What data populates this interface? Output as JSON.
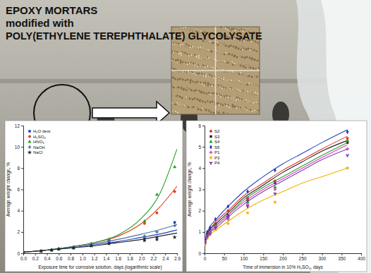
{
  "header": {
    "lines": [
      "EPOXY MORTARS",
      "modified with",
      "POLY(ETHYLENE TEREPHTHALATE) GLYCOLYSATE"
    ]
  },
  "chart_data": [
    {
      "type": "scatter",
      "x_label": "Exposure time for corrosive solution, days (logarithmic scale)",
      "y_label": "Average weight change, %",
      "x": [
        0.0,
        0.3,
        0.48,
        0.6,
        0.85,
        1.15,
        1.45,
        2.05,
        2.26,
        2.56
      ],
      "fit_x": [
        0,
        0.4,
        0.8,
        1.2,
        1.6,
        2.0,
        2.3,
        2.6
      ],
      "series": [
        {
          "name": "H₂O dest",
          "color": "#1f3fbf",
          "marker": "square",
          "values": [
            0.1,
            0.2,
            0.3,
            0.4,
            0.5,
            0.7,
            1.0,
            1.4,
            1.5,
            2.9
          ],
          "fit": [
            0.1,
            0.3,
            0.5,
            0.8,
            1.1,
            1.5,
            1.8,
            2.2
          ]
        },
        {
          "name": "H₂SO₄",
          "color": "#e0401a",
          "marker": "circle",
          "values": [
            0.1,
            0.2,
            0.3,
            0.4,
            0.5,
            0.8,
            1.2,
            2.8,
            3.8,
            5.8
          ],
          "fit": [
            0.1,
            0.3,
            0.6,
            1.0,
            1.6,
            2.8,
            4.3,
            6.3
          ]
        },
        {
          "name": "HNO₃",
          "color": "#2aa02a",
          "marker": "triangle",
          "values": [
            0.1,
            0.2,
            0.3,
            0.4,
            0.5,
            0.8,
            1.3,
            3.0,
            5.5,
            8.1
          ],
          "fit": [
            0.1,
            0.3,
            0.6,
            1.0,
            1.7,
            3.3,
            5.5,
            9.8
          ]
        },
        {
          "name": "NaOH",
          "color": "#4a6fa0",
          "marker": "cross",
          "values": [
            0.1,
            0.2,
            0.3,
            0.4,
            0.6,
            0.9,
            1.2,
            1.6,
            2.0,
            2.6
          ],
          "fit": [
            0.1,
            0.3,
            0.6,
            0.9,
            1.3,
            1.8,
            2.2,
            2.7
          ]
        },
        {
          "name": "NaCl",
          "color": "#222222",
          "marker": "star",
          "values": [
            0.1,
            0.2,
            0.3,
            0.4,
            0.5,
            0.7,
            0.9,
            1.2,
            1.3,
            1.5
          ],
          "fit": [
            0.1,
            0.3,
            0.5,
            0.7,
            1.0,
            1.3,
            1.6,
            1.9
          ]
        }
      ],
      "xlim": [
        0,
        2.6
      ],
      "xticks": [
        {
          "value": 0,
          "label": "0.0"
        },
        {
          "value": 0.2,
          "label": "0.2"
        },
        {
          "value": 0.4,
          "label": "0.4"
        },
        {
          "value": 0.6,
          "label": "0.6"
        },
        {
          "value": 0.8,
          "label": "0.8"
        },
        {
          "value": 1,
          "label": "1.0"
        },
        {
          "value": 1.2,
          "label": "1.2"
        },
        {
          "value": 1.4,
          "label": "1.4"
        },
        {
          "value": 1.6,
          "label": "1.6"
        },
        {
          "value": 1.8,
          "label": "1.8"
        },
        {
          "value": 2,
          "label": "2.0"
        },
        {
          "value": 2.2,
          "label": "2.2"
        },
        {
          "value": 2.4,
          "label": "2.4"
        },
        {
          "value": 2.6,
          "label": "2.6"
        }
      ],
      "ylim": [
        0,
        12
      ],
      "yticks": [
        0,
        2,
        4,
        6,
        8,
        10,
        12
      ],
      "legend": "top-left",
      "grid": false
    },
    {
      "type": "scatter",
      "x_label": "Time of immersion in 10% H₂SO₄, days",
      "y_label": "Average weight change, %",
      "x": [
        1,
        7,
        14,
        28,
        60,
        110,
        180,
        365
      ],
      "fit_x": [
        0,
        10,
        30,
        60,
        100,
        150,
        200,
        250,
        300,
        365
      ],
      "series": [
        {
          "name": "S2",
          "color": "#e0302a",
          "marker": "circle",
          "values": [
            0.6,
            0.9,
            1.1,
            1.4,
            2.0,
            2.6,
            3.4,
            5.4
          ],
          "fit": [
            0.5,
            1.0,
            1.5,
            2.0,
            2.7,
            3.3,
            3.9,
            4.4,
            4.9,
            5.5
          ]
        },
        {
          "name": "S3",
          "color": "#222222",
          "marker": "square",
          "values": [
            0.6,
            0.9,
            1.0,
            1.3,
            1.8,
            2.5,
            3.3,
            5.2
          ],
          "fit": [
            0.5,
            1.0,
            1.4,
            1.9,
            2.6,
            3.2,
            3.8,
            4.3,
            4.8,
            5.3
          ]
        },
        {
          "name": "S4",
          "color": "#2aa02a",
          "marker": "triangle",
          "values": [
            0.5,
            0.8,
            1.0,
            1.3,
            1.7,
            2.4,
            3.1,
            5.3
          ],
          "fit": [
            0.4,
            0.9,
            1.3,
            1.8,
            2.5,
            3.1,
            3.6,
            4.1,
            4.6,
            5.2
          ]
        },
        {
          "name": "S5",
          "color": "#1f3fbf",
          "marker": "diamond",
          "values": [
            0.7,
            1.0,
            1.2,
            1.6,
            2.2,
            2.9,
            3.9,
            5.7
          ],
          "fit": [
            0.5,
            1.1,
            1.6,
            2.2,
            2.9,
            3.6,
            4.2,
            4.7,
            5.2,
            5.8
          ]
        },
        {
          "name": "P1",
          "color": "#e040c0",
          "marker": "cross",
          "values": [
            0.5,
            0.8,
            1.0,
            1.2,
            1.6,
            2.3,
            3.0,
            4.9
          ],
          "fit": [
            0.4,
            0.9,
            1.3,
            1.8,
            2.4,
            3.0,
            3.5,
            4.0,
            4.5,
            5.1
          ]
        },
        {
          "name": "P3",
          "color": "#f0b000",
          "marker": "star",
          "values": [
            0.4,
            0.7,
            0.9,
            1.1,
            1.4,
            1.9,
            2.4,
            4.0
          ],
          "fit": [
            0.4,
            0.8,
            1.1,
            1.5,
            2.0,
            2.5,
            2.9,
            3.3,
            3.6,
            4.0
          ]
        },
        {
          "name": "P4",
          "color": "#7a3fb0",
          "marker": "wye",
          "values": [
            0.5,
            0.8,
            0.9,
            1.2,
            1.7,
            2.2,
            2.8,
            4.6
          ],
          "fit": [
            0.4,
            0.9,
            1.2,
            1.7,
            2.3,
            2.9,
            3.4,
            3.9,
            4.4,
            4.9
          ]
        }
      ],
      "xlim": [
        0,
        400
      ],
      "xticks": [
        0,
        50,
        100,
        150,
        200,
        250,
        300,
        350,
        400
      ],
      "ylim": [
        0,
        6
      ],
      "yticks": [
        0,
        1,
        2,
        3,
        4,
        5,
        6
      ],
      "legend": "top-left",
      "grid": false
    }
  ]
}
